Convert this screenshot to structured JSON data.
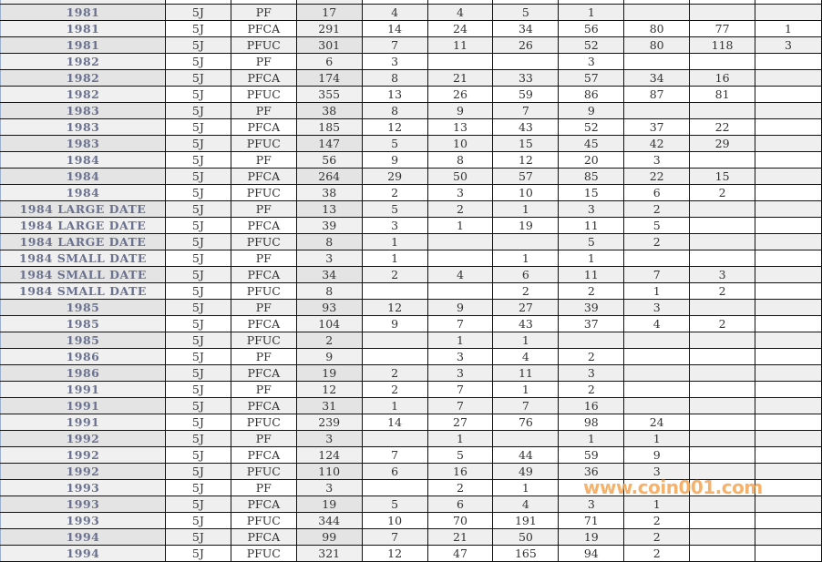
{
  "watermark": "www.coin001.com",
  "rows": [
    [
      "",
      "",
      "",
      "",
      "",
      "",
      "",
      "",
      "",
      "",
      ""
    ],
    [
      "1981",
      "5J",
      "PF",
      "17",
      "4",
      "4",
      "5",
      "1",
      "",
      "",
      ""
    ],
    [
      "1981",
      "5J",
      "PFCA",
      "291",
      "14",
      "24",
      "34",
      "56",
      "80",
      "77",
      "1"
    ],
    [
      "1981",
      "5J",
      "PFUC",
      "301",
      "7",
      "11",
      "26",
      "52",
      "80",
      "118",
      "3"
    ],
    [
      "1982",
      "5J",
      "PF",
      "6",
      "3",
      "",
      "",
      "3",
      "",
      "",
      ""
    ],
    [
      "1982",
      "5J",
      "PFCA",
      "174",
      "8",
      "21",
      "33",
      "57",
      "34",
      "16",
      ""
    ],
    [
      "1982",
      "5J",
      "PFUC",
      "355",
      "13",
      "26",
      "59",
      "86",
      "87",
      "81",
      ""
    ],
    [
      "1983",
      "5J",
      "PF",
      "38",
      "8",
      "9",
      "7",
      "9",
      "",
      "",
      ""
    ],
    [
      "1983",
      "5J",
      "PFCA",
      "185",
      "12",
      "13",
      "43",
      "52",
      "37",
      "22",
      ""
    ],
    [
      "1983",
      "5J",
      "PFUC",
      "147",
      "5",
      "10",
      "15",
      "45",
      "42",
      "29",
      ""
    ],
    [
      "1984",
      "5J",
      "PF",
      "56",
      "9",
      "8",
      "12",
      "20",
      "3",
      "",
      ""
    ],
    [
      "1984",
      "5J",
      "PFCA",
      "264",
      "29",
      "50",
      "57",
      "85",
      "22",
      "15",
      ""
    ],
    [
      "1984",
      "5J",
      "PFUC",
      "38",
      "2",
      "3",
      "10",
      "15",
      "6",
      "2",
      ""
    ],
    [
      "1984 LARGE DATE",
      "5J",
      "PF",
      "13",
      "5",
      "2",
      "1",
      "3",
      "2",
      "",
      ""
    ],
    [
      "1984 LARGE DATE",
      "5J",
      "PFCA",
      "39",
      "3",
      "1",
      "19",
      "11",
      "5",
      "",
      ""
    ],
    [
      "1984 LARGE DATE",
      "5J",
      "PFUC",
      "8",
      "1",
      "",
      "",
      "5",
      "2",
      "",
      ""
    ],
    [
      "1984 SMALL DATE",
      "5J",
      "PF",
      "3",
      "1",
      "",
      "1",
      "1",
      "",
      "",
      ""
    ],
    [
      "1984 SMALL DATE",
      "5J",
      "PFCA",
      "34",
      "2",
      "4",
      "6",
      "11",
      "7",
      "3",
      ""
    ],
    [
      "1984 SMALL DATE",
      "5J",
      "PFUC",
      "8",
      "",
      "",
      "2",
      "2",
      "1",
      "2",
      ""
    ],
    [
      "1985",
      "5J",
      "PF",
      "93",
      "12",
      "9",
      "27",
      "39",
      "3",
      "",
      ""
    ],
    [
      "1985",
      "5J",
      "PFCA",
      "104",
      "9",
      "7",
      "43",
      "37",
      "4",
      "2",
      ""
    ],
    [
      "1985",
      "5J",
      "PFUC",
      "2",
      "",
      "1",
      "1",
      "",
      "",
      "",
      ""
    ],
    [
      "1986",
      "5J",
      "PF",
      "9",
      "",
      "3",
      "4",
      "2",
      "",
      "",
      ""
    ],
    [
      "1986",
      "5J",
      "PFCA",
      "19",
      "2",
      "3",
      "11",
      "3",
      "",
      "",
      ""
    ],
    [
      "1991",
      "5J",
      "PF",
      "12",
      "2",
      "7",
      "1",
      "2",
      "",
      "",
      ""
    ],
    [
      "1991",
      "5J",
      "PFCA",
      "31",
      "1",
      "7",
      "7",
      "16",
      "",
      "",
      ""
    ],
    [
      "1991",
      "5J",
      "PFUC",
      "239",
      "14",
      "27",
      "76",
      "98",
      "24",
      "",
      ""
    ],
    [
      "1992",
      "5J",
      "PF",
      "3",
      "",
      "1",
      "",
      "1",
      "1",
      "",
      ""
    ],
    [
      "1992",
      "5J",
      "PFCA",
      "124",
      "7",
      "5",
      "44",
      "59",
      "9",
      "",
      ""
    ],
    [
      "1992",
      "5J",
      "PFUC",
      "110",
      "6",
      "16",
      "49",
      "36",
      "3",
      "",
      ""
    ],
    [
      "1993",
      "5J",
      "PF",
      "3",
      "",
      "2",
      "1",
      "",
      "",
      "",
      ""
    ],
    [
      "1993",
      "5J",
      "PFCA",
      "19",
      "5",
      "6",
      "4",
      "3",
      "1",
      "",
      ""
    ],
    [
      "1993",
      "5J",
      "PFUC",
      "344",
      "10",
      "70",
      "191",
      "71",
      "2",
      "",
      ""
    ],
    [
      "1994",
      "5J",
      "PFCA",
      "99",
      "7",
      "21",
      "50",
      "19",
      "2",
      "",
      ""
    ],
    [
      "1994",
      "5J",
      "PFUC",
      "321",
      "12",
      "47",
      "165",
      "94",
      "2",
      "",
      ""
    ]
  ]
}
